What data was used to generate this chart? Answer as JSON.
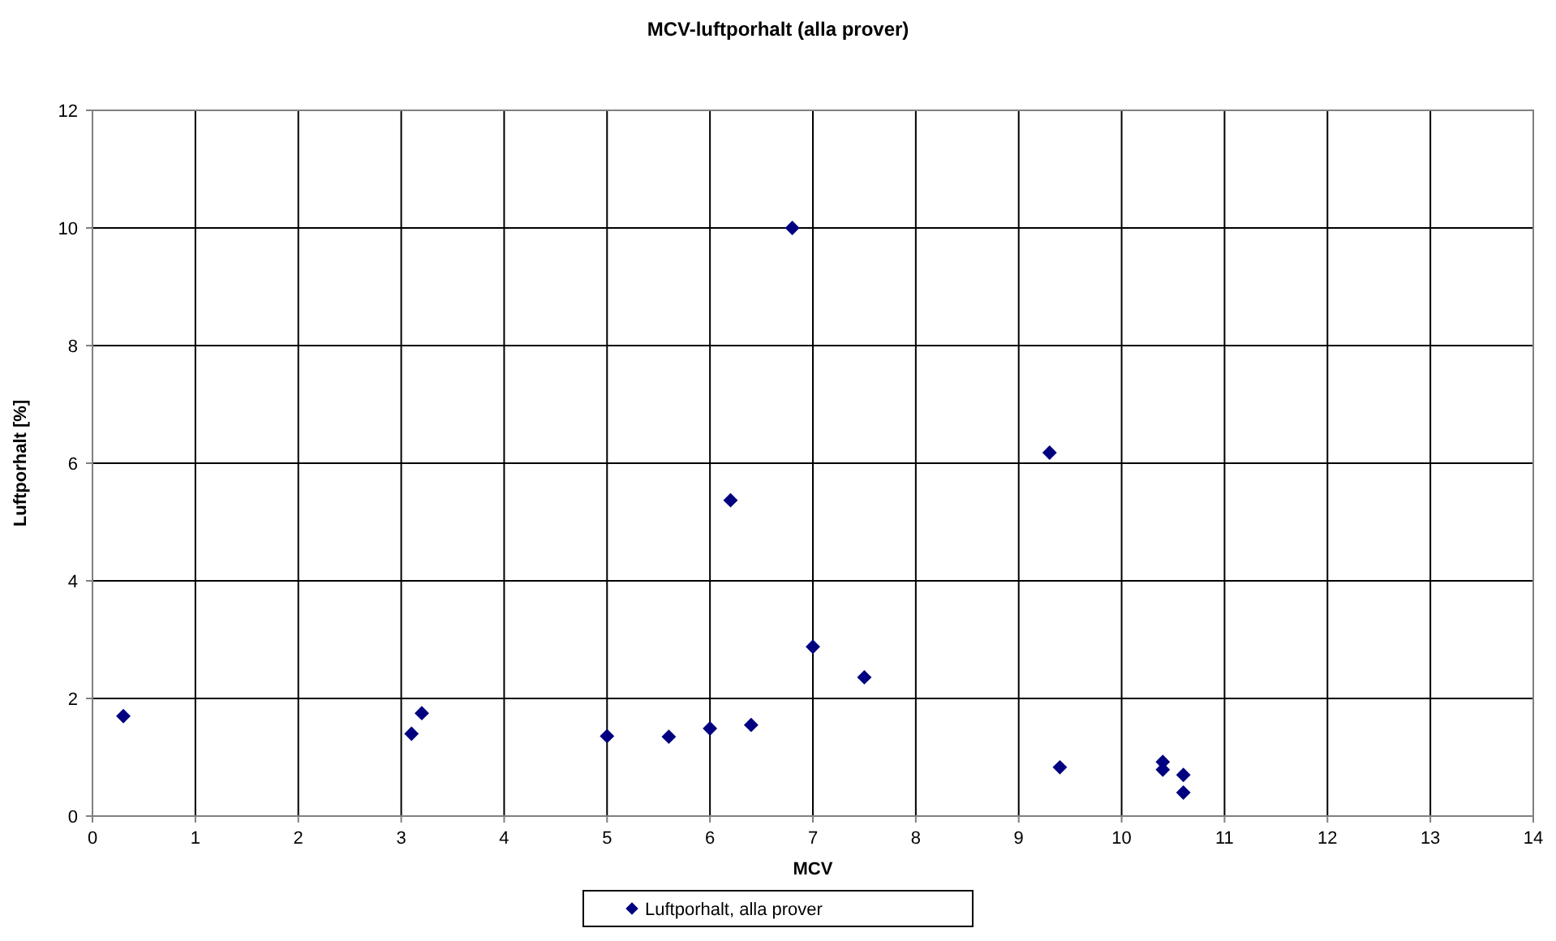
{
  "chart_data": {
    "type": "scatter",
    "title": "MCV-luftporhalt (alla prover)",
    "xlabel": "MCV",
    "ylabel": "Luftporhalt [%]",
    "xlim": [
      0,
      14
    ],
    "xticks": [
      0,
      1,
      2,
      3,
      4,
      5,
      6,
      7,
      8,
      9,
      10,
      11,
      12,
      13,
      14
    ],
    "ylim": [
      0,
      12
    ],
    "yticks": [
      0,
      2,
      4,
      6,
      8,
      10,
      12
    ],
    "grid": true,
    "legend": "bottom",
    "marker": "diamond",
    "series": [
      {
        "name": "Luftporhalt, alla prover",
        "color": "#000080",
        "x": [
          0.3,
          3.1,
          3.2,
          5.0,
          5.6,
          6.0,
          6.4,
          6.2,
          6.8,
          7.0,
          7.5,
          9.3,
          9.4,
          10.4,
          10.4,
          10.6,
          10.6
        ],
        "values": [
          1.7,
          1.4,
          1.75,
          1.36,
          1.35,
          1.49,
          1.55,
          5.37,
          10.0,
          2.88,
          2.36,
          6.18,
          0.83,
          0.92,
          0.79,
          0.7,
          0.4
        ]
      }
    ]
  }
}
